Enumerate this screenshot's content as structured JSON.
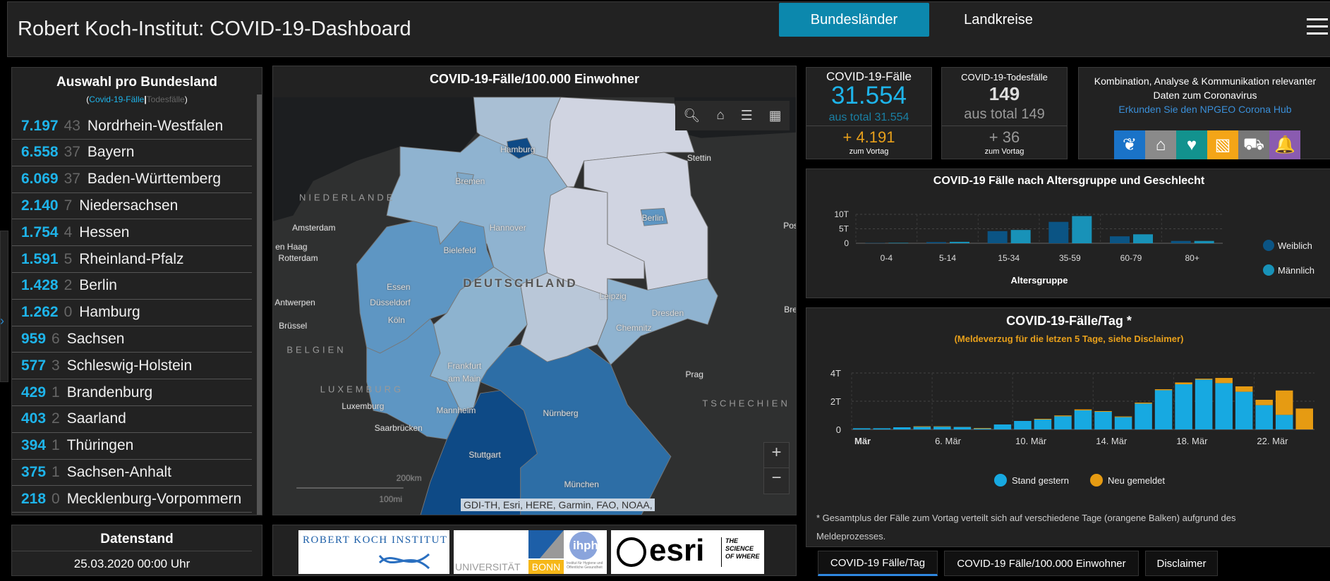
{
  "header": {
    "title": "Robert Koch-Institut: COVID-19-Dashboard",
    "tabs": [
      "Bundesländer",
      "Landkreise"
    ],
    "active_tab": "Bundesländer",
    "menu_icon": "hamburger-icon"
  },
  "left_panel": {
    "title": "Auswahl pro Bundesland",
    "subtitle": {
      "open": "(",
      "cases": "Covid-19-Fälle",
      "sep": "|",
      "deaths": "Todesfälle",
      "close": ")"
    },
    "rows": [
      {
        "cases": "7.197",
        "deaths": "43",
        "state": "Nordrhein-Westfalen"
      },
      {
        "cases": "6.558",
        "deaths": "37",
        "state": "Bayern"
      },
      {
        "cases": "6.069",
        "deaths": "37",
        "state": "Baden-Württemberg"
      },
      {
        "cases": "2.140",
        "deaths": "7",
        "state": "Niedersachsen"
      },
      {
        "cases": "1.754",
        "deaths": "4",
        "state": "Hessen"
      },
      {
        "cases": "1.591",
        "deaths": "5",
        "state": "Rheinland-Pfalz"
      },
      {
        "cases": "1.428",
        "deaths": "2",
        "state": "Berlin"
      },
      {
        "cases": "1.262",
        "deaths": "0",
        "state": "Hamburg"
      },
      {
        "cases": "959",
        "deaths": "6",
        "state": "Sachsen"
      },
      {
        "cases": "577",
        "deaths": "3",
        "state": "Schleswig-Holstein"
      },
      {
        "cases": "429",
        "deaths": "1",
        "state": "Brandenburg"
      },
      {
        "cases": "403",
        "deaths": "2",
        "state": "Saarland"
      },
      {
        "cases": "394",
        "deaths": "1",
        "state": "Thüringen"
      },
      {
        "cases": "375",
        "deaths": "1",
        "state": "Sachsen-Anhalt"
      },
      {
        "cases": "218",
        "deaths": "0",
        "state": "Mecklenburg-Vorpommern"
      }
    ]
  },
  "datenstand": {
    "title": "Datenstand",
    "value": "25.03.2020 00:00 Uhr"
  },
  "map": {
    "title": "COVID-19-Fälle/100.000 Einwohner",
    "labels": {
      "hamburg": "Hamburg",
      "stettin": "Stettin",
      "bremen": "Bremen",
      "niederlande": "NIEDERLANDE",
      "berlin": "Berlin",
      "amsterdam": "Amsterdam",
      "hannover": "Hannover",
      "pos": "Pos",
      "denhaag": "en Haag",
      "rotterdam": "Rotterdam",
      "bielefeld": "Bielefeld",
      "deutschland": "DEUTSCHLAND",
      "essen": "Essen",
      "leipzig": "Leipzig",
      "antwerpen": "Antwerpen",
      "duesseldorf": "Düsseldorf",
      "dresden": "Dresden",
      "bre": "Bre",
      "koeln": "Köln",
      "chemnitz": "Chemnitz",
      "bruessel": "Brüssel",
      "belgien": "BELGIEN",
      "frankfurt": "Frankfurt",
      "ammain": "am Main",
      "prag": "Prag",
      "luxemburg_country": "LUXEMBURG",
      "tschechien": "TSCHECHIEN",
      "luxemburg": "Luxemburg",
      "mannheim": "Mannheim",
      "nuernberg": "Nürnberg",
      "saarbruecken": "Saarbrücken",
      "stuttgart": "Stuttgart",
      "muenchen": "München"
    },
    "scale_km": "200km",
    "scale_mi": "100mi",
    "attribution": "GDI-TH, Esri, HERE, Garmin, FAO, NOAA, ...",
    "zoom_in": "+",
    "zoom_out": "−",
    "state_colors": {
      "dark": "#0e4a86",
      "mid_dark": "#2d6ea6",
      "mid": "#5e96c3",
      "light": "#8fb3d0",
      "pale": "#b9c7d8",
      "palest": "#d0d4e1"
    }
  },
  "logos": {
    "rki": "ROBERT KOCH INSTITUT",
    "bonn_univ": "UNIVERSITÄT",
    "bonn": "BONN",
    "ihph": "ihph",
    "ihph_sub": "Institut für Hygiene und Öffentliche Gesundheit",
    "esri": "esri",
    "esri_tag": "THE SCIENCE OF WHERE"
  },
  "cards": {
    "cases": {
      "label": "COVID-19-Fälle",
      "value": "31.554",
      "total": "aus total 31.554",
      "delta": "+ 4.191",
      "delta_label": "zum Vortag"
    },
    "deaths": {
      "label": "COVID-19-Todesfälle",
      "value": "149",
      "total": "aus total 149",
      "delta": "+ 36",
      "delta_label": "zum Vortag"
    },
    "hub": {
      "line1": "Kombination, Analyse & Kommunikation relevanter",
      "line2": "Daten zum Coronavirus",
      "link": "Erkunden Sie den NPGEO Corona Hub",
      "icons": [
        {
          "name": "plant-hand-icon",
          "color": "#1a73c8",
          "glyph": "❦"
        },
        {
          "name": "location-home-icon",
          "color": "#8a8a8a",
          "glyph": "⌂"
        },
        {
          "name": "heart-pulse-icon",
          "color": "#12928e",
          "glyph": "♥"
        },
        {
          "name": "map-boundary-icon",
          "color": "#f4a517",
          "glyph": "▧"
        },
        {
          "name": "cars-icon",
          "color": "#777777",
          "glyph": "⛟"
        },
        {
          "name": "bell-icon",
          "color": "#8a5bb0",
          "glyph": "🔔"
        }
      ]
    }
  },
  "colors": {
    "accent_blue": "#1eb4ea",
    "orange": "#e8a01b",
    "tab_active": "#0c88ad"
  },
  "chart_data": [
    {
      "type": "bar",
      "title": "COVID-19 Fälle nach Altersgruppe und Geschlecht",
      "xlabel": "Altersgruppe",
      "ylabel": "",
      "categories": [
        "0-4",
        "5-14",
        "15-34",
        "35-59",
        "60-79",
        "80+"
      ],
      "y_ticks": [
        {
          "value": 0,
          "label": "0"
        },
        {
          "value": 5000,
          "label": "5T"
        },
        {
          "value": 10000,
          "label": "10T"
        }
      ],
      "ylim": [
        0,
        10000
      ],
      "grid": true,
      "legend": "right",
      "series": [
        {
          "name": "Weiblich",
          "color": "#0b5484",
          "values": [
            100,
            400,
            4200,
            7400,
            2400,
            800
          ]
        },
        {
          "name": "Männlich",
          "color": "#1892b8",
          "values": [
            150,
            500,
            4600,
            9400,
            3100,
            800
          ]
        }
      ]
    },
    {
      "type": "bar",
      "stacked": true,
      "title": "COVID-19-Fälle/Tag *",
      "subtitle": "(Meldeverzug für die letzen 5 Tage, siehe Disclaimer)",
      "x": [
        "02.03",
        "03.03",
        "04.03",
        "05.03",
        "06.03",
        "07.03",
        "08.03",
        "09.03",
        "10.03",
        "11.03",
        "12.03",
        "13.03",
        "14.03",
        "15.03",
        "16.03",
        "17.03",
        "18.03",
        "19.03",
        "20.03",
        "21.03",
        "22.03",
        "23.03",
        "24.03"
      ],
      "x_tick_labels": [
        {
          "index": 0,
          "label": "Mär"
        },
        {
          "index": 4,
          "label": "6. Mär"
        },
        {
          "index": 8,
          "label": "10. Mär"
        },
        {
          "index": 12,
          "label": "14. Mär"
        },
        {
          "index": 16,
          "label": "18. Mär"
        },
        {
          "index": 20,
          "label": "22. Mär"
        }
      ],
      "y_ticks": [
        {
          "value": 0,
          "label": "0"
        },
        {
          "value": 2000,
          "label": "2T"
        },
        {
          "value": 4000,
          "label": "4T"
        }
      ],
      "ylim": [
        0,
        4000
      ],
      "grid": true,
      "legend": "bottom",
      "series": [
        {
          "name": "Stand gestern",
          "color": "#17a9e1",
          "values": [
            80,
            80,
            150,
            180,
            190,
            170,
            60,
            350,
            600,
            700,
            930,
            1350,
            1250,
            870,
            1830,
            2780,
            3200,
            3530,
            3280,
            2670,
            1720,
            1030,
            0
          ]
        },
        {
          "name": "Neu gemeldet",
          "color": "#e69b12",
          "values": [
            0,
            0,
            0,
            40,
            30,
            10,
            40,
            0,
            0,
            50,
            60,
            70,
            50,
            50,
            70,
            70,
            130,
            70,
            370,
            380,
            380,
            1730,
            1480
          ]
        }
      ],
      "footnote": "* Gesamtplus der Fälle zum Vortag verteilt sich auf verschiedene Tage (orangene Balken) aufgrund des",
      "footnote2": "Meldeprozesses."
    }
  ],
  "bottom_tabs": [
    "COVID-19 Fälle/Tag",
    "COVID-19 Fälle/100.000 Einwohner",
    "Disclaimer"
  ]
}
